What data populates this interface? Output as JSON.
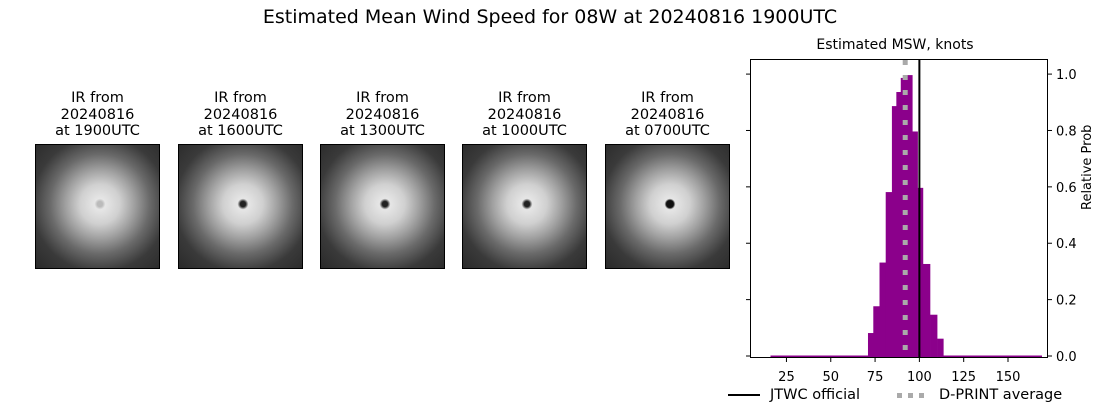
{
  "figure": {
    "title": "Estimated Mean Wind Speed for 08W at 20240816 1900UTC"
  },
  "thumbnails": [
    {
      "line1": "IR from",
      "line2": "20240816",
      "line3": "at 1900UTC",
      "eye": "diffuse"
    },
    {
      "line1": "IR from",
      "line2": "20240816",
      "line3": "at 1600UTC",
      "eye": "small"
    },
    {
      "line1": "IR from",
      "line2": "20240816",
      "line3": "at 1300UTC",
      "eye": "small"
    },
    {
      "line1": "IR from",
      "line2": "20240816",
      "line3": "at 1000UTC",
      "eye": "small"
    },
    {
      "line1": "IR from",
      "line2": "20240816",
      "line3": "at 0700UTC",
      "eye": "large"
    }
  ],
  "legend": {
    "jtwc": "JTWC official",
    "dprint": "D-PRINT average"
  },
  "colors": {
    "bars": "#8b008b",
    "jtwc_line": "#000000",
    "dprint_line": "#aaaaaa"
  },
  "chart_data": {
    "type": "bar",
    "title": "Estimated MSW, knots",
    "xlabel": "",
    "ylabel": "Relative Prob",
    "xlim": [
      0,
      172
    ],
    "ylim": [
      0,
      1.05
    ],
    "xticks": [
      25,
      50,
      75,
      100,
      125,
      150
    ],
    "yticks": [
      0.0,
      0.2,
      0.4,
      0.6,
      0.8,
      1.0
    ],
    "yaxis_position": "right",
    "bin_edges": [
      16,
      71,
      74,
      77.5,
      81,
      84.5,
      87,
      89.5,
      92,
      96,
      99,
      102,
      106,
      110,
      113.5,
      169
    ],
    "values": [
      0.005,
      0.085,
      0.18,
      0.335,
      0.585,
      0.89,
      0.94,
      0.99,
      1.0,
      0.8,
      0.6,
      0.33,
      0.15,
      0.065,
      0.005
    ],
    "vlines": [
      {
        "name": "JTWC official",
        "x": 100,
        "style": "solid",
        "color": "#000000"
      },
      {
        "name": "D-PRINT average",
        "x": 92,
        "style": "dotted",
        "color": "#aaaaaa"
      }
    ],
    "legend_position": "below"
  }
}
